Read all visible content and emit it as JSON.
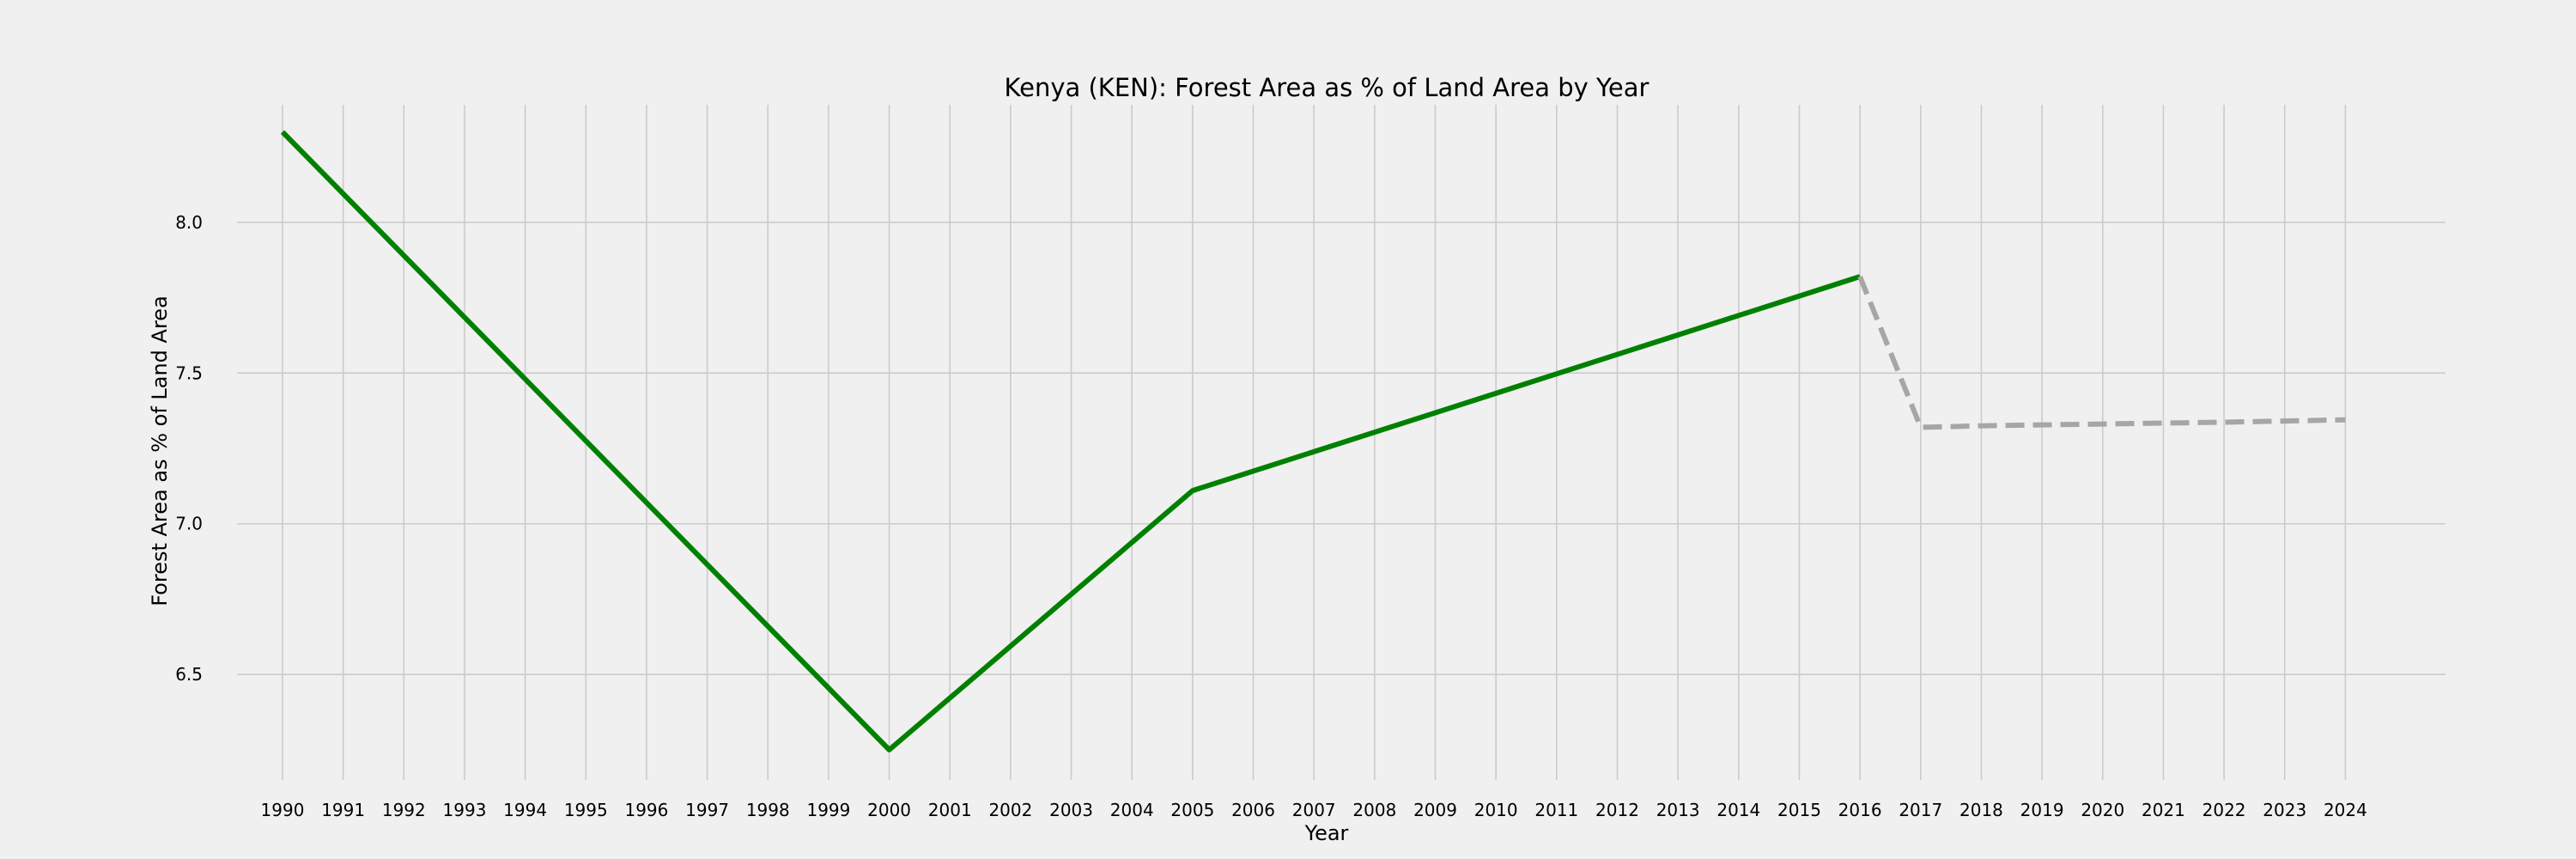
{
  "colors": {
    "background": "#f0f0f0",
    "grid": "#cbcbcb",
    "actual_line": "#008000",
    "projected_line": "#a6a6a6"
  },
  "chart_data": {
    "type": "line",
    "title": "Kenya (KEN): Forest Area as % of Land Area by Year",
    "xlabel": "Year",
    "ylabel": "Forest Area as % of Land Area",
    "x_ticks": [
      "1990",
      "1991",
      "1992",
      "1993",
      "1994",
      "1995",
      "1996",
      "1997",
      "1998",
      "1999",
      "2000",
      "2001",
      "2002",
      "2003",
      "2004",
      "2005",
      "2006",
      "2007",
      "2008",
      "2009",
      "2010",
      "2011",
      "2012",
      "2013",
      "2014",
      "2015",
      "2016",
      "2017",
      "2018",
      "2019",
      "2020",
      "2021",
      "2022",
      "2023",
      "2024"
    ],
    "y_ticks": [
      "6.5",
      "7.0",
      "7.5",
      "8.0"
    ],
    "xlim": [
      1989.25,
      2025.65
    ],
    "ylim": [
      6.15,
      8.39
    ],
    "grid": true,
    "series": [
      {
        "style": "solid",
        "color": "#008000",
        "x": [
          1990,
          2000,
          2005,
          2016
        ],
        "y": [
          8.3,
          6.25,
          7.11,
          7.82
        ]
      },
      {
        "style": "dashed",
        "color": "#a6a6a6",
        "x": [
          2016,
          2017,
          2018,
          2019,
          2020,
          2021,
          2022,
          2023,
          2024
        ],
        "y": [
          7.82,
          7.32,
          7.325,
          7.328,
          7.331,
          7.334,
          7.337,
          7.341,
          7.345
        ]
      }
    ]
  }
}
